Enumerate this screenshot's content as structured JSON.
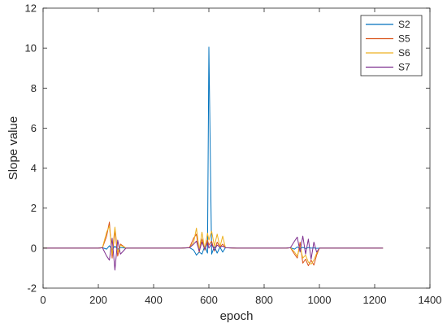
{
  "chart_data": {
    "type": "line",
    "title": "",
    "xlabel": "epoch",
    "ylabel": "Slope value",
    "xlim": [
      0,
      1400
    ],
    "ylim": [
      -2,
      12
    ],
    "xticks": [
      0,
      200,
      400,
      600,
      800,
      1000,
      1200,
      1400
    ],
    "yticks": [
      -2,
      0,
      2,
      4,
      6,
      8,
      10,
      12
    ],
    "grid": false,
    "legend_position": "top-right",
    "x": [
      0,
      200,
      215,
      230,
      240,
      250,
      260,
      270,
      280,
      300,
      500,
      530,
      545,
      555,
      565,
      575,
      585,
      595,
      600,
      610,
      620,
      630,
      640,
      650,
      660,
      700,
      880,
      895,
      910,
      920,
      930,
      940,
      950,
      960,
      970,
      980,
      990,
      1000,
      1050,
      1230
    ],
    "series": [
      {
        "name": "S2",
        "color": "#0072BD",
        "values": [
          0.0,
          0.0,
          0.02,
          -0.05,
          0.12,
          -0.08,
          0.1,
          -0.06,
          0.03,
          0.0,
          0.0,
          0.02,
          -0.1,
          -0.35,
          -0.2,
          -0.3,
          0.1,
          -0.25,
          10.05,
          -0.3,
          0.08,
          -0.25,
          0.05,
          -0.2,
          0.02,
          0.0,
          0.0,
          0.02,
          -0.05,
          0.06,
          -0.03,
          0.04,
          -0.02,
          0.03,
          0.0,
          0.01,
          -0.01,
          0.0,
          0.0,
          0.0
        ]
      },
      {
        "name": "S5",
        "color": "#D95319",
        "values": [
          0.0,
          0.0,
          0.02,
          0.6,
          1.3,
          -0.5,
          0.9,
          -0.4,
          0.2,
          0.0,
          0.0,
          0.03,
          0.5,
          0.7,
          -0.2,
          0.45,
          -0.1,
          0.4,
          0.15,
          0.35,
          -0.15,
          0.3,
          0.05,
          0.2,
          0.02,
          0.0,
          0.0,
          0.02,
          -0.3,
          -0.5,
          0.3,
          -0.75,
          -0.55,
          -0.88,
          -0.6,
          -0.85,
          -0.35,
          0.0,
          0.0,
          0.0
        ]
      },
      {
        "name": "S6",
        "color": "#EDB120",
        "values": [
          0.0,
          0.0,
          0.03,
          0.8,
          1.1,
          -0.3,
          1.05,
          -0.2,
          0.15,
          0.0,
          0.0,
          0.02,
          0.3,
          1.0,
          -0.1,
          0.8,
          -0.05,
          0.75,
          0.4,
          0.85,
          0.1,
          0.7,
          0.05,
          0.6,
          0.02,
          0.0,
          0.0,
          0.02,
          -0.2,
          -0.4,
          0.1,
          -0.5,
          -0.35,
          -0.7,
          -0.8,
          -0.6,
          -0.25,
          0.0,
          0.0,
          0.0
        ]
      },
      {
        "name": "S7",
        "color": "#7E2F8E",
        "values": [
          0.0,
          0.0,
          0.02,
          -0.4,
          -0.6,
          0.5,
          -1.1,
          0.4,
          -0.3,
          0.0,
          0.0,
          0.02,
          0.2,
          0.35,
          -0.15,
          0.3,
          -0.05,
          0.25,
          0.0,
          0.2,
          -0.1,
          0.15,
          0.05,
          0.1,
          0.02,
          0.0,
          0.0,
          0.02,
          0.35,
          0.55,
          -0.2,
          0.6,
          -0.3,
          0.45,
          -0.55,
          0.3,
          -0.2,
          0.0,
          0.0,
          0.0
        ]
      }
    ]
  }
}
